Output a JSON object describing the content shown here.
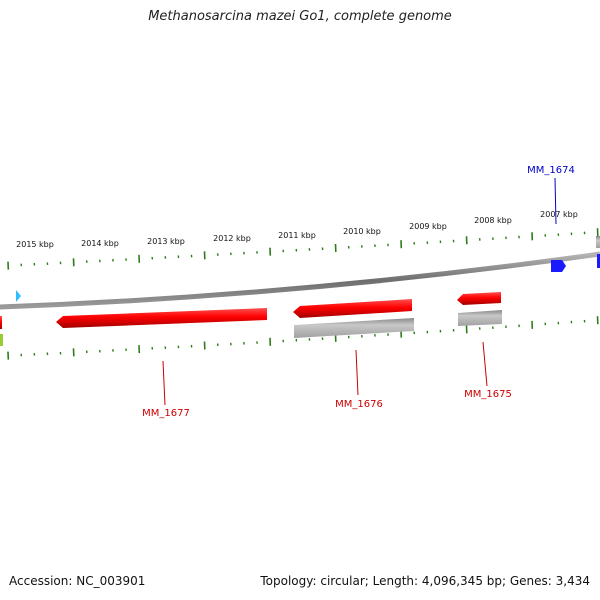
{
  "title": "Methanosarcina mazei Go1, complete genome",
  "footer": {
    "accession": "Accession: NC_003901",
    "summary": "Topology: circular; Length: 4,096,345 bp; Genes: 3,434"
  },
  "colors": {
    "backbone": "#8a8a8a",
    "tick": "#2e7d1a",
    "gene_forward": "#ff0000",
    "gene_secondary": "#b8b8b8",
    "gene_label_red": "#cc0000",
    "gene_label_blue": "#0000cc",
    "marker_blue": "#1a1aff",
    "marker_cyan": "#33bbff",
    "marker_green": "#99cc33"
  },
  "scale_labels": [
    {
      "label": "2015 kbp"
    },
    {
      "label": "2014 kbp"
    },
    {
      "label": "2013 kbp"
    },
    {
      "label": "2012 kbp"
    },
    {
      "label": "2011 kbp"
    },
    {
      "label": "2010 kbp"
    },
    {
      "label": "2009 kbp"
    },
    {
      "label": "2008 kbp"
    },
    {
      "label": "2007 kbp"
    }
  ],
  "genes": [
    {
      "id": "MM_1677",
      "label": "MM_1677"
    },
    {
      "id": "MM_1676",
      "label": "MM_1676"
    },
    {
      "id": "MM_1675",
      "label": "MM_1675"
    },
    {
      "id": "MM_1674",
      "label": "MM_1674"
    }
  ]
}
